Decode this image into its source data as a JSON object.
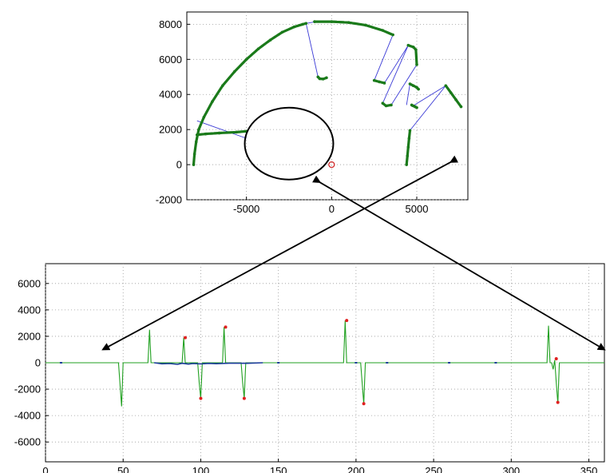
{
  "chart_data": [
    {
      "type": "scatter",
      "title": "",
      "xlabel": "",
      "ylabel": "",
      "xlim": [
        -8500,
        8000
      ],
      "ylim": [
        -2000,
        8700
      ],
      "xticks": [
        -5000,
        0,
        5000
      ],
      "xtick_labels": [
        "-5000",
        "0",
        "5000"
      ],
      "yticks": [
        -2000,
        0,
        2000,
        4000,
        6000,
        8000
      ],
      "ytick_labels": [
        "-2000",
        "0",
        "2000",
        "4000",
        "6000",
        "8000"
      ],
      "grid": true,
      "colors": {
        "points": "#1a7a1a",
        "segments": "#3b3bd6",
        "origin": "#d02020",
        "ellipse": "#000000"
      },
      "arc_segments": [
        {
          "x": [
            -8100,
            -8050,
            -7950,
            -7800,
            -7500,
            -7000,
            -6400,
            -5700,
            -5000,
            -4300,
            -3600,
            -2900,
            -2200,
            -1700,
            -1500
          ],
          "y": [
            0,
            600,
            1300,
            2000,
            2700,
            3600,
            4500,
            5300,
            6000,
            6600,
            7100,
            7550,
            7850,
            8000,
            8050
          ]
        },
        {
          "x": [
            -7900,
            -7400,
            -6600,
            -5600,
            -5000
          ],
          "y": [
            1700,
            1750,
            1800,
            1850,
            1900
          ]
        },
        {
          "x": [
            -800,
            -700,
            -500,
            -300
          ],
          "y": [
            5000,
            4900,
            4880,
            4950
          ]
        },
        {
          "x": [
            -1000,
            0,
            1000,
            2000,
            3000,
            3600
          ],
          "y": [
            8150,
            8150,
            8100,
            7950,
            7650,
            7400
          ]
        },
        {
          "x": [
            2500,
            2800,
            3100
          ],
          "y": [
            4800,
            4720,
            4650
          ]
        },
        {
          "x": [
            4500,
            4800,
            4950,
            5000
          ],
          "y": [
            6800,
            6700,
            6550,
            5700
          ]
        },
        {
          "x": [
            3000,
            3200,
            3500
          ],
          "y": [
            3500,
            3350,
            3400
          ]
        },
        {
          "x": [
            4600,
            4800,
            5000,
            5100
          ],
          "y": [
            4600,
            4500,
            4400,
            4300
          ]
        },
        {
          "x": [
            4700,
            4800,
            4900,
            5000
          ],
          "y": [
            3400,
            3350,
            3300,
            3250
          ]
        },
        {
          "x": [
            4400,
            4450,
            4500,
            4550,
            4600
          ],
          "y": [
            0,
            500,
            1000,
            1500,
            1950
          ]
        },
        {
          "x": [
            6700,
            7000,
            7300,
            7600
          ],
          "y": [
            4500,
            4100,
            3700,
            3300
          ]
        }
      ],
      "links": [
        {
          "x": [
            -7900,
            -5000
          ],
          "y": [
            2500,
            1500
          ]
        },
        {
          "x": [
            -1500,
            -800
          ],
          "y": [
            8050,
            5000
          ]
        },
        {
          "x": [
            -1500,
            -900
          ],
          "y": [
            8050,
            8150
          ]
        },
        {
          "x": [
            3600,
            2500
          ],
          "y": [
            7400,
            4800
          ]
        },
        {
          "x": [
            4500,
            3100
          ],
          "y": [
            6800,
            4650
          ]
        },
        {
          "x": [
            4500,
            3000
          ],
          "y": [
            6800,
            3500
          ]
        },
        {
          "x": [
            5000,
            3500
          ],
          "y": [
            5700,
            3400
          ]
        },
        {
          "x": [
            4600,
            4400
          ],
          "y": [
            4600,
            3400
          ]
        },
        {
          "x": [
            4600,
            6700
          ],
          "y": [
            1950,
            4500
          ]
        },
        {
          "x": [
            4700,
            6700
          ],
          "y": [
            3300,
            4500
          ]
        }
      ],
      "origin_marker": {
        "x": 0,
        "y": 0
      },
      "ellipse": {
        "cx": -2500,
        "cy": 1200,
        "rx": 2600,
        "ry": 2050
      }
    },
    {
      "type": "line",
      "title": "",
      "xlabel": "",
      "ylabel": "",
      "xlim": [
        0,
        360
      ],
      "ylim": [
        -7500,
        7500
      ],
      "xticks": [
        0,
        50,
        100,
        150,
        200,
        250,
        300,
        350
      ],
      "xtick_labels": [
        "0",
        "50",
        "100",
        "150",
        "200",
        "250",
        "300",
        "350"
      ],
      "yticks": [
        -6000,
        -4000,
        -2000,
        0,
        2000,
        4000,
        6000
      ],
      "ytick_labels": [
        "-6000",
        "-4000",
        "-2000",
        "0",
        "2000",
        "4000",
        "6000"
      ],
      "grid": true,
      "series": [
        {
          "color": "#20a020",
          "x": [
            0,
            47,
            48,
            49,
            50,
            66,
            67,
            68,
            69,
            88,
            89,
            90,
            91,
            98,
            99,
            100,
            101,
            114,
            115,
            116,
            117,
            126,
            127,
            128,
            129,
            192,
            193,
            194,
            195,
            203,
            204,
            205,
            206,
            323,
            324,
            325,
            326,
            327,
            328,
            329,
            330,
            331,
            360
          ],
          "y": [
            0,
            0,
            -1600,
            -3300,
            0,
            0,
            2500,
            0,
            0,
            0,
            1900,
            0,
            0,
            0,
            -1500,
            -2700,
            0,
            0,
            2700,
            0,
            0,
            0,
            -1500,
            -2700,
            0,
            0,
            3200,
            0,
            0,
            0,
            -1600,
            -3100,
            0,
            0,
            2800,
            0,
            0,
            -500,
            200,
            -1500,
            -3100,
            0,
            0
          ]
        },
        {
          "color": "#1a3a9a",
          "x": [
            70,
            75,
            80,
            85,
            88,
            92,
            95,
            100,
            105,
            110,
            120,
            130,
            140
          ],
          "y": [
            0,
            -80,
            -60,
            -120,
            -40,
            -100,
            -60,
            -90,
            -50,
            -70,
            -30,
            -40,
            0
          ]
        }
      ],
      "red_markers": {
        "x": [
          90,
          100,
          116,
          128,
          194,
          205,
          329,
          330
        ],
        "y": [
          1900,
          -2700,
          2700,
          -2700,
          3200,
          -3100,
          300,
          -3000
        ]
      },
      "small_dots": {
        "x": [
          10,
          150,
          200,
          220,
          260,
          290
        ],
        "y": [
          0,
          0,
          0,
          0,
          0,
          0
        ]
      }
    }
  ],
  "arrows": [
    {
      "name": "arrow-to-left",
      "from_chart": 0,
      "from": {
        "x": 7000,
        "y": 150
      },
      "to_chart": 1,
      "to": {
        "x": 37,
        "y": 1000
      }
    },
    {
      "name": "arrow-to-right",
      "from_chart": 0,
      "from": {
        "x": -700,
        "y": -1000
      },
      "to_chart": 1,
      "to": {
        "x": 360,
        "y": 1000
      }
    }
  ]
}
